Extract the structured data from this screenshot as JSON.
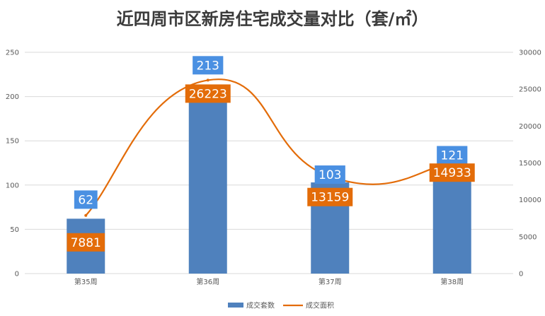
{
  "chart_data": {
    "type": "bar",
    "title": "近四周市区新房住宅成交量对比（套/㎡）",
    "categories": [
      "第35周",
      "第36周",
      "第37周",
      "第38周"
    ],
    "series": [
      {
        "name": "成交套数",
        "type": "bar",
        "axis": "left",
        "color": "#4f81bd",
        "values": [
          62,
          213,
          103,
          121
        ]
      },
      {
        "name": "成交面积",
        "type": "line",
        "axis": "right",
        "color": "#e36c09",
        "values": [
          7881,
          26223,
          13159,
          14933
        ]
      }
    ],
    "y_left": {
      "range": [
        0,
        250
      ],
      "ticks": [
        "0",
        "50",
        "100",
        "150",
        "200",
        "250"
      ]
    },
    "y_right": {
      "range": [
        0,
        30000
      ],
      "ticks": [
        "0",
        "5000",
        "10000",
        "15000",
        "20000",
        "25000",
        "30000"
      ]
    },
    "grid": true,
    "legend_position": "bottom",
    "smooth_line": true
  },
  "colors": {
    "bar_label_box": "#4a90e2",
    "line_label_box": "#e36c09",
    "gridline": "#d9d9d9"
  }
}
